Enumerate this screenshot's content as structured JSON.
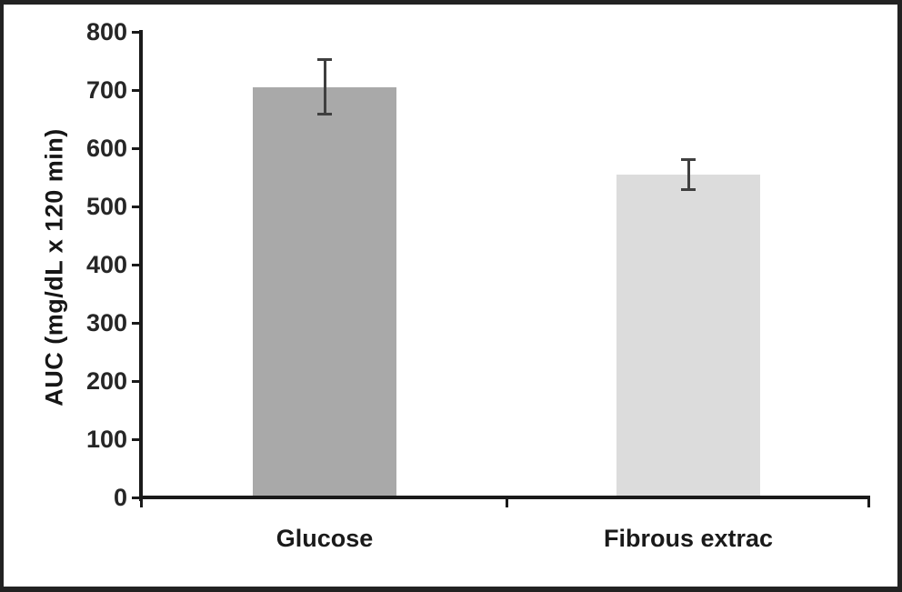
{
  "chart_data": {
    "type": "bar",
    "title": "",
    "xlabel": "",
    "ylabel": "AUC (mg/dL x 120 min)",
    "categories": [
      "Glucose",
      "Fibrous extrac"
    ],
    "values": [
      705,
      555
    ],
    "errors": [
      47,
      26
    ],
    "bar_colors": [
      "#a9a9a9",
      "#dcdcdc"
    ],
    "ylim": [
      0,
      800
    ],
    "yticks": [
      0,
      100,
      200,
      300,
      400,
      500,
      600,
      700,
      800
    ],
    "grid": false,
    "legend_position": "none"
  },
  "styles": {
    "background": "#ffffff",
    "frame_color": "#222222",
    "axis_color": "#1a1a1a",
    "tick_label_color": "#262626",
    "category_label_color": "#1a1a1a",
    "error_bar_color": "#3f3f3f"
  }
}
